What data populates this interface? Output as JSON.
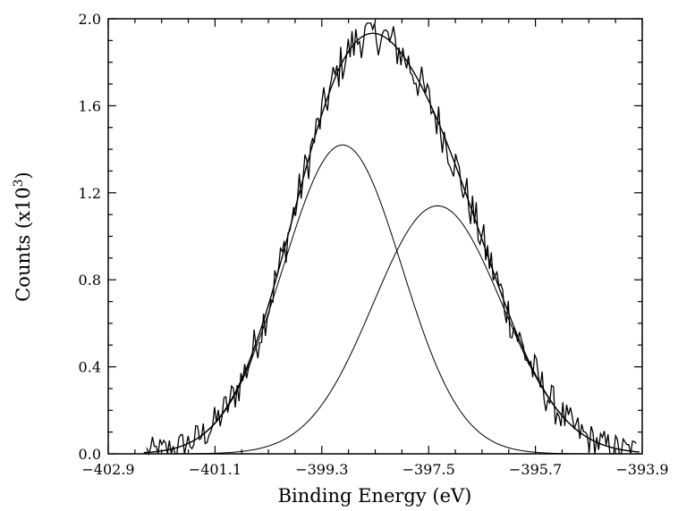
{
  "chart_data": {
    "type": "line",
    "title": "",
    "xlabel": "Binding Energy (eV)",
    "ylabel_parts": [
      "Counts (x10",
      "3",
      ")"
    ],
    "xlim": [
      -402.9,
      -393.9
    ],
    "ylim": [
      0.0,
      2.0
    ],
    "x_ticks": [
      -402.9,
      -401.1,
      -399.3,
      -397.5,
      -395.7,
      -393.9
    ],
    "x_tick_labels": [
      "−402.9",
      "−401.1",
      "−399.3",
      "−397.5",
      "−395.7",
      "−393.9"
    ],
    "y_ticks": [
      0.0,
      0.4,
      0.8,
      1.2,
      1.6,
      2.0
    ],
    "y_tick_labels": [
      "0.0",
      "0.4",
      "0.8",
      "1.2",
      "1.6",
      "2.0"
    ],
    "grid": false,
    "components": [
      {
        "center": -398.95,
        "height": 1.42,
        "fwhm": 2.35
      },
      {
        "center": -397.35,
        "height": 1.14,
        "fwhm": 2.55
      }
    ],
    "raw_noise_amplitude": 0.07,
    "raw_x_range": [
      -402.25,
      -394.0
    ],
    "raw_points": 260,
    "line_color": "#000000"
  }
}
